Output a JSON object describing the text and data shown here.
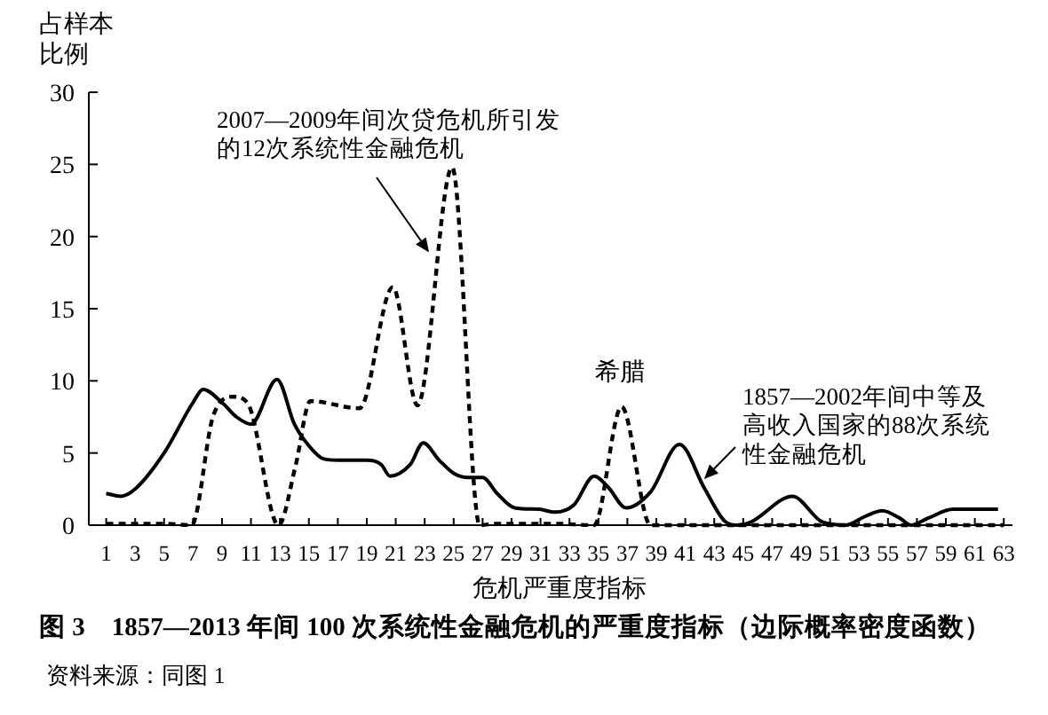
{
  "chart_data": {
    "type": "line",
    "title": "图 3　1857—2013 年间 100 次系统性金融危机的严重度指标（边际概率密度函数）",
    "xlabel": "危机严重度指标",
    "ylabel": "占样本比例",
    "xlim": [
      -0.2,
      63.6
    ],
    "ylim": [
      0,
      30
    ],
    "xticks": [
      1,
      3,
      5,
      7,
      9,
      11,
      13,
      15,
      17,
      19,
      21,
      23,
      25,
      27,
      29,
      31,
      33,
      35,
      37,
      39,
      41,
      43,
      45,
      47,
      49,
      51,
      53,
      55,
      57,
      59,
      61,
      63
    ],
    "yticks": [
      0,
      5,
      10,
      15,
      20,
      25,
      30
    ],
    "grid": false,
    "marker": "none",
    "series": [
      {
        "color": "#000000",
        "line_style": "solid",
        "x": [
          1,
          2,
          3,
          5,
          7,
          7.7,
          9,
          10,
          11,
          12.8,
          14,
          15,
          16,
          17,
          19,
          20,
          20.6,
          22,
          22.9,
          24,
          25,
          26,
          27,
          28,
          29.2,
          30.9,
          32,
          33.3,
          34.7,
          35.7,
          36.9,
          38.6,
          40.6,
          42.3,
          43.7,
          44.6,
          45.5,
          48.4,
          50.5,
          52.1,
          53.4,
          54.6,
          55.8,
          56.6,
          57.8,
          59.5,
          62.6
        ],
        "values": [
          2.2,
          2.0,
          2.5,
          5.0,
          8.5,
          9.4,
          8.5,
          7.5,
          7.0,
          10.1,
          7.0,
          5.5,
          4.6,
          4.5,
          4.5,
          4.2,
          3.4,
          4.2,
          5.7,
          4.5,
          3.6,
          3.3,
          3.3,
          2.2,
          1.2,
          1.1,
          0.9,
          1.4,
          3.4,
          2.6,
          1.2,
          2.3,
          5.6,
          2.6,
          0.3,
          0.0,
          0.2,
          2.0,
          0.2,
          0.0,
          0.6,
          1.0,
          0.5,
          0.0,
          0.5,
          1.1,
          1.1
        ]
      },
      {
        "color": "#000000",
        "line_style": "dashed",
        "x": [
          1,
          3,
          5,
          6.9,
          8.4,
          9.8,
          10.8,
          12.9,
          14.1,
          15.1,
          18.5,
          20.8,
          22.5,
          24.9,
          26.8,
          28,
          30,
          32,
          34.7,
          36.6,
          38.6,
          41,
          45,
          50,
          55,
          60,
          63
        ],
        "values": [
          0.1,
          0.1,
          0.1,
          0.0,
          7.6,
          8.9,
          8.4,
          0.0,
          4.2,
          8.6,
          8.1,
          16.5,
          8.3,
          24.8,
          0.0,
          0.1,
          0.1,
          0.1,
          0.0,
          8.2,
          0.0,
          0.0,
          0.0,
          0.0,
          0.0,
          0.0,
          0.0
        ]
      }
    ],
    "annotations": [
      {
        "text": "2007—2009年间次贷危机所引发的12次系统性金融危机",
        "x": 23.3,
        "y": 18.9
      },
      "希腊",
      {
        "text": "1857—2002年间中等及高收入国家的88次系统性金融危机",
        "x": 42.3,
        "y": 3.2
      },
      "资料来源：同图 1"
    ]
  }
}
